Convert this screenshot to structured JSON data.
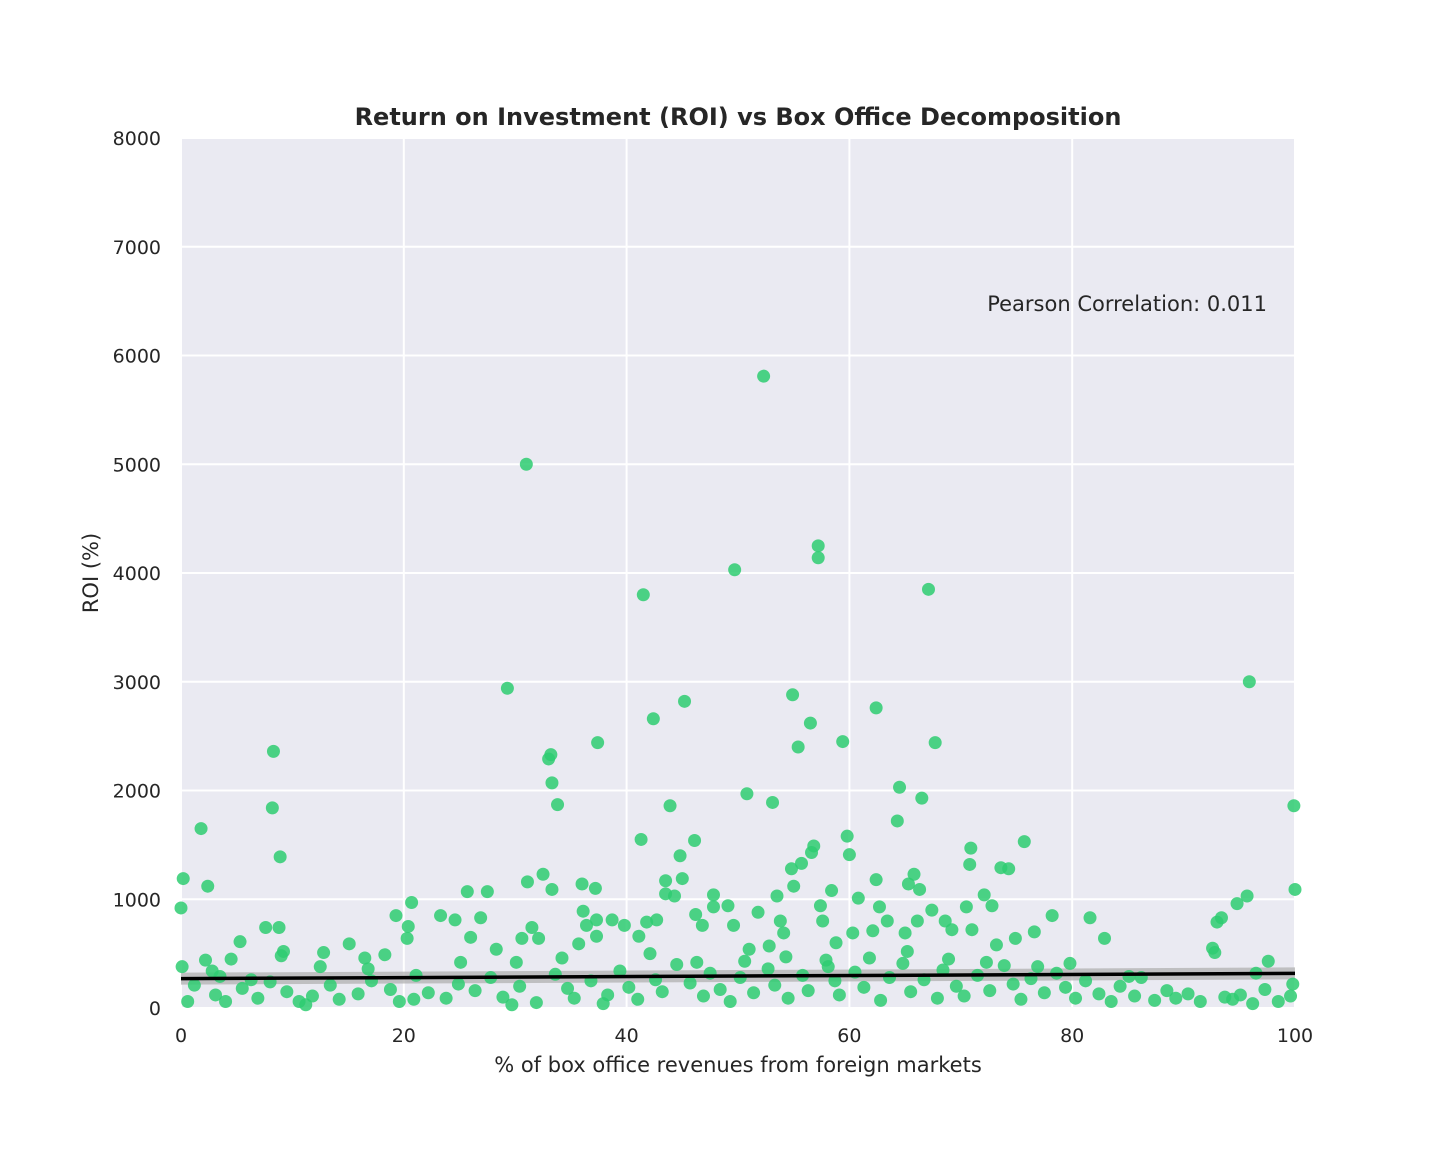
{
  "chart_data": {
    "type": "scatter",
    "title": "Return on Investment (ROI) vs Box Office Decomposition",
    "xlabel": "% of box office revenues from foreign markets",
    "ylabel": "ROI (%)",
    "xlim": [
      0,
      100
    ],
    "ylim": [
      0,
      8000
    ],
    "xticks": [
      0,
      20,
      40,
      60,
      80,
      100
    ],
    "yticks": [
      0,
      1000,
      2000,
      3000,
      4000,
      5000,
      6000,
      7000,
      8000
    ],
    "grid": true,
    "annotation": "Pearson Correlation: 0.011",
    "colors": {
      "points": "#2ecc71",
      "regression": "#000000",
      "ci_band": "#b0b0b0",
      "plot_bg": "#eaeaf2",
      "grid": "#ffffff"
    },
    "regression_line": {
      "x": [
        0,
        100
      ],
      "y": [
        270,
        318
      ]
    },
    "series": [
      {
        "points": [
          [
            0.0,
            920
          ],
          [
            0.2,
            1190
          ],
          [
            0.1,
            380
          ],
          [
            1.8,
            1650
          ],
          [
            2.4,
            1120
          ],
          [
            2.2,
            440
          ],
          [
            3.5,
            290
          ],
          [
            4.5,
            450
          ],
          [
            5.3,
            610
          ],
          [
            7.6,
            740
          ],
          [
            8.3,
            2360
          ],
          [
            8.2,
            1840
          ],
          [
            8.9,
            1390
          ],
          [
            8.8,
            740
          ],
          [
            9.2,
            520
          ],
          [
            9.0,
            480
          ],
          [
            12.5,
            380
          ],
          [
            12.8,
            510
          ],
          [
            15.1,
            590
          ],
          [
            16.5,
            460
          ],
          [
            18.3,
            490
          ],
          [
            19.3,
            850
          ],
          [
            20.3,
            640
          ],
          [
            20.4,
            750
          ],
          [
            20.7,
            970
          ],
          [
            23.3,
            850
          ],
          [
            24.6,
            810
          ],
          [
            25.7,
            1070
          ],
          [
            26.0,
            650
          ],
          [
            26.9,
            830
          ],
          [
            27.5,
            1070
          ],
          [
            28.3,
            540
          ],
          [
            29.3,
            2940
          ],
          [
            30.1,
            420
          ],
          [
            30.6,
            640
          ],
          [
            31.0,
            5000
          ],
          [
            31.1,
            1160
          ],
          [
            31.5,
            740
          ],
          [
            32.1,
            640
          ],
          [
            32.5,
            1230
          ],
          [
            33.0,
            2290
          ],
          [
            33.2,
            2330
          ],
          [
            33.3,
            1090
          ],
          [
            33.3,
            2070
          ],
          [
            33.8,
            1870
          ],
          [
            35.7,
            590
          ],
          [
            36.0,
            1140
          ],
          [
            36.1,
            890
          ],
          [
            36.4,
            760
          ],
          [
            37.2,
            1100
          ],
          [
            37.3,
            660
          ],
          [
            37.4,
            2440
          ],
          [
            37.3,
            810
          ],
          [
            38.7,
            810
          ],
          [
            39.8,
            760
          ],
          [
            41.1,
            660
          ],
          [
            41.3,
            1550
          ],
          [
            41.5,
            3800
          ],
          [
            41.8,
            790
          ],
          [
            42.4,
            2660
          ],
          [
            42.7,
            810
          ],
          [
            43.5,
            1170
          ],
          [
            43.5,
            1050
          ],
          [
            43.9,
            1860
          ],
          [
            44.3,
            1030
          ],
          [
            44.8,
            1400
          ],
          [
            45.2,
            2820
          ],
          [
            45.0,
            1190
          ],
          [
            46.1,
            1540
          ],
          [
            46.2,
            860
          ],
          [
            46.8,
            760
          ],
          [
            47.8,
            1040
          ],
          [
            47.8,
            930
          ],
          [
            49.1,
            940
          ],
          [
            49.7,
            4030
          ],
          [
            49.6,
            760
          ],
          [
            50.8,
            1970
          ],
          [
            51.0,
            540
          ],
          [
            51.8,
            880
          ],
          [
            52.3,
            5810
          ],
          [
            52.8,
            570
          ],
          [
            53.1,
            1890
          ],
          [
            53.5,
            1030
          ],
          [
            53.8,
            800
          ],
          [
            54.1,
            690
          ],
          [
            54.9,
            2880
          ],
          [
            54.8,
            1280
          ],
          [
            55.0,
            1120
          ],
          [
            55.4,
            2400
          ],
          [
            55.7,
            1330
          ],
          [
            56.5,
            2620
          ],
          [
            56.6,
            1430
          ],
          [
            56.8,
            1490
          ],
          [
            57.2,
            4250
          ],
          [
            57.2,
            4140
          ],
          [
            57.4,
            940
          ],
          [
            57.6,
            800
          ],
          [
            58.4,
            1080
          ],
          [
            58.8,
            600
          ],
          [
            59.4,
            2450
          ],
          [
            59.8,
            1580
          ],
          [
            60.0,
            1410
          ],
          [
            60.3,
            690
          ],
          [
            60.8,
            1010
          ],
          [
            62.1,
            710
          ],
          [
            62.4,
            2760
          ],
          [
            62.4,
            1180
          ],
          [
            62.7,
            930
          ],
          [
            63.4,
            800
          ],
          [
            64.3,
            1720
          ],
          [
            64.5,
            2030
          ],
          [
            65.0,
            690
          ],
          [
            65.3,
            1140
          ],
          [
            65.8,
            1230
          ],
          [
            66.1,
            800
          ],
          [
            66.3,
            1090
          ],
          [
            66.5,
            1930
          ],
          [
            67.1,
            3850
          ],
          [
            67.4,
            900
          ],
          [
            67.7,
            2440
          ],
          [
            68.6,
            800
          ],
          [
            69.2,
            720
          ],
          [
            70.5,
            930
          ],
          [
            70.8,
            1320
          ],
          [
            70.9,
            1470
          ],
          [
            71.0,
            720
          ],
          [
            72.1,
            1040
          ],
          [
            72.8,
            940
          ],
          [
            73.2,
            580
          ],
          [
            73.6,
            1290
          ],
          [
            74.3,
            1280
          ],
          [
            74.9,
            640
          ],
          [
            75.7,
            1530
          ],
          [
            76.6,
            700
          ],
          [
            78.2,
            850
          ],
          [
            81.6,
            830
          ],
          [
            82.9,
            640
          ],
          [
            92.6,
            550
          ],
          [
            92.8,
            510
          ],
          [
            93.0,
            790
          ],
          [
            93.4,
            830
          ],
          [
            94.8,
            960
          ],
          [
            95.7,
            1030
          ],
          [
            95.9,
            3000
          ],
          [
            99.9,
            1860
          ],
          [
            100.0,
            1090
          ],
          [
            97.6,
            430
          ],
          [
            96.5,
            320
          ],
          [
            95.1,
            120
          ],
          [
            99.8,
            220
          ],
          [
            1.2,
            210
          ],
          [
            3.1,
            120
          ],
          [
            4.0,
            60
          ],
          [
            5.5,
            180
          ],
          [
            6.9,
            90
          ],
          [
            8.0,
            240
          ],
          [
            9.5,
            150
          ],
          [
            10.6,
            60
          ],
          [
            11.8,
            110
          ],
          [
            13.4,
            210
          ],
          [
            14.2,
            80
          ],
          [
            15.9,
            130
          ],
          [
            17.1,
            250
          ],
          [
            18.8,
            170
          ],
          [
            19.6,
            60
          ],
          [
            21.1,
            300
          ],
          [
            22.2,
            140
          ],
          [
            23.8,
            90
          ],
          [
            24.9,
            220
          ],
          [
            26.4,
            160
          ],
          [
            27.8,
            280
          ],
          [
            28.9,
            100
          ],
          [
            30.4,
            200
          ],
          [
            31.9,
            50
          ],
          [
            33.6,
            310
          ],
          [
            34.7,
            180
          ],
          [
            35.3,
            90
          ],
          [
            36.8,
            250
          ],
          [
            38.3,
            120
          ],
          [
            39.4,
            340
          ],
          [
            40.2,
            190
          ],
          [
            41.0,
            80
          ],
          [
            42.6,
            260
          ],
          [
            43.2,
            150
          ],
          [
            44.5,
            400
          ],
          [
            45.7,
            230
          ],
          [
            46.9,
            110
          ],
          [
            47.5,
            320
          ],
          [
            48.4,
            170
          ],
          [
            49.3,
            60
          ],
          [
            50.2,
            280
          ],
          [
            51.4,
            140
          ],
          [
            52.7,
            360
          ],
          [
            53.3,
            210
          ],
          [
            54.5,
            90
          ],
          [
            55.8,
            300
          ],
          [
            56.3,
            160
          ],
          [
            57.9,
            440
          ],
          [
            58.7,
            250
          ],
          [
            59.1,
            120
          ],
          [
            60.5,
            330
          ],
          [
            61.3,
            190
          ],
          [
            62.8,
            70
          ],
          [
            63.6,
            280
          ],
          [
            64.8,
            410
          ],
          [
            65.5,
            150
          ],
          [
            66.7,
            260
          ],
          [
            67.9,
            90
          ],
          [
            68.4,
            350
          ],
          [
            69.6,
            200
          ],
          [
            70.3,
            110
          ],
          [
            71.5,
            300
          ],
          [
            72.6,
            160
          ],
          [
            73.9,
            390
          ],
          [
            74.7,
            220
          ],
          [
            75.4,
            80
          ],
          [
            76.3,
            270
          ],
          [
            77.5,
            140
          ],
          [
            78.6,
            320
          ],
          [
            79.4,
            190
          ],
          [
            80.3,
            90
          ],
          [
            81.2,
            250
          ],
          [
            82.4,
            130
          ],
          [
            83.5,
            60
          ],
          [
            84.3,
            200
          ],
          [
            85.6,
            110
          ],
          [
            86.2,
            280
          ],
          [
            87.4,
            70
          ],
          [
            88.5,
            160
          ],
          [
            89.3,
            90
          ],
          [
            90.4,
            130
          ],
          [
            91.5,
            60
          ],
          [
            93.7,
            100
          ],
          [
            94.4,
            80
          ],
          [
            96.2,
            40
          ],
          [
            97.3,
            170
          ],
          [
            98.5,
            60
          ],
          [
            99.6,
            110
          ],
          [
            0.6,
            60
          ],
          [
            2.8,
            340
          ],
          [
            6.3,
            260
          ],
          [
            11.2,
            30
          ],
          [
            16.8,
            360
          ],
          [
            20.9,
            80
          ],
          [
            25.1,
            420
          ],
          [
            29.7,
            30
          ],
          [
            34.2,
            460
          ],
          [
            37.9,
            40
          ],
          [
            42.1,
            500
          ],
          [
            46.3,
            420
          ],
          [
            50.6,
            430
          ],
          [
            54.3,
            470
          ],
          [
            58.1,
            380
          ],
          [
            61.8,
            460
          ],
          [
            65.2,
            520
          ],
          [
            68.9,
            450
          ],
          [
            72.3,
            420
          ],
          [
            76.9,
            380
          ],
          [
            79.8,
            410
          ],
          [
            85.1,
            290
          ]
        ]
      }
    ]
  }
}
